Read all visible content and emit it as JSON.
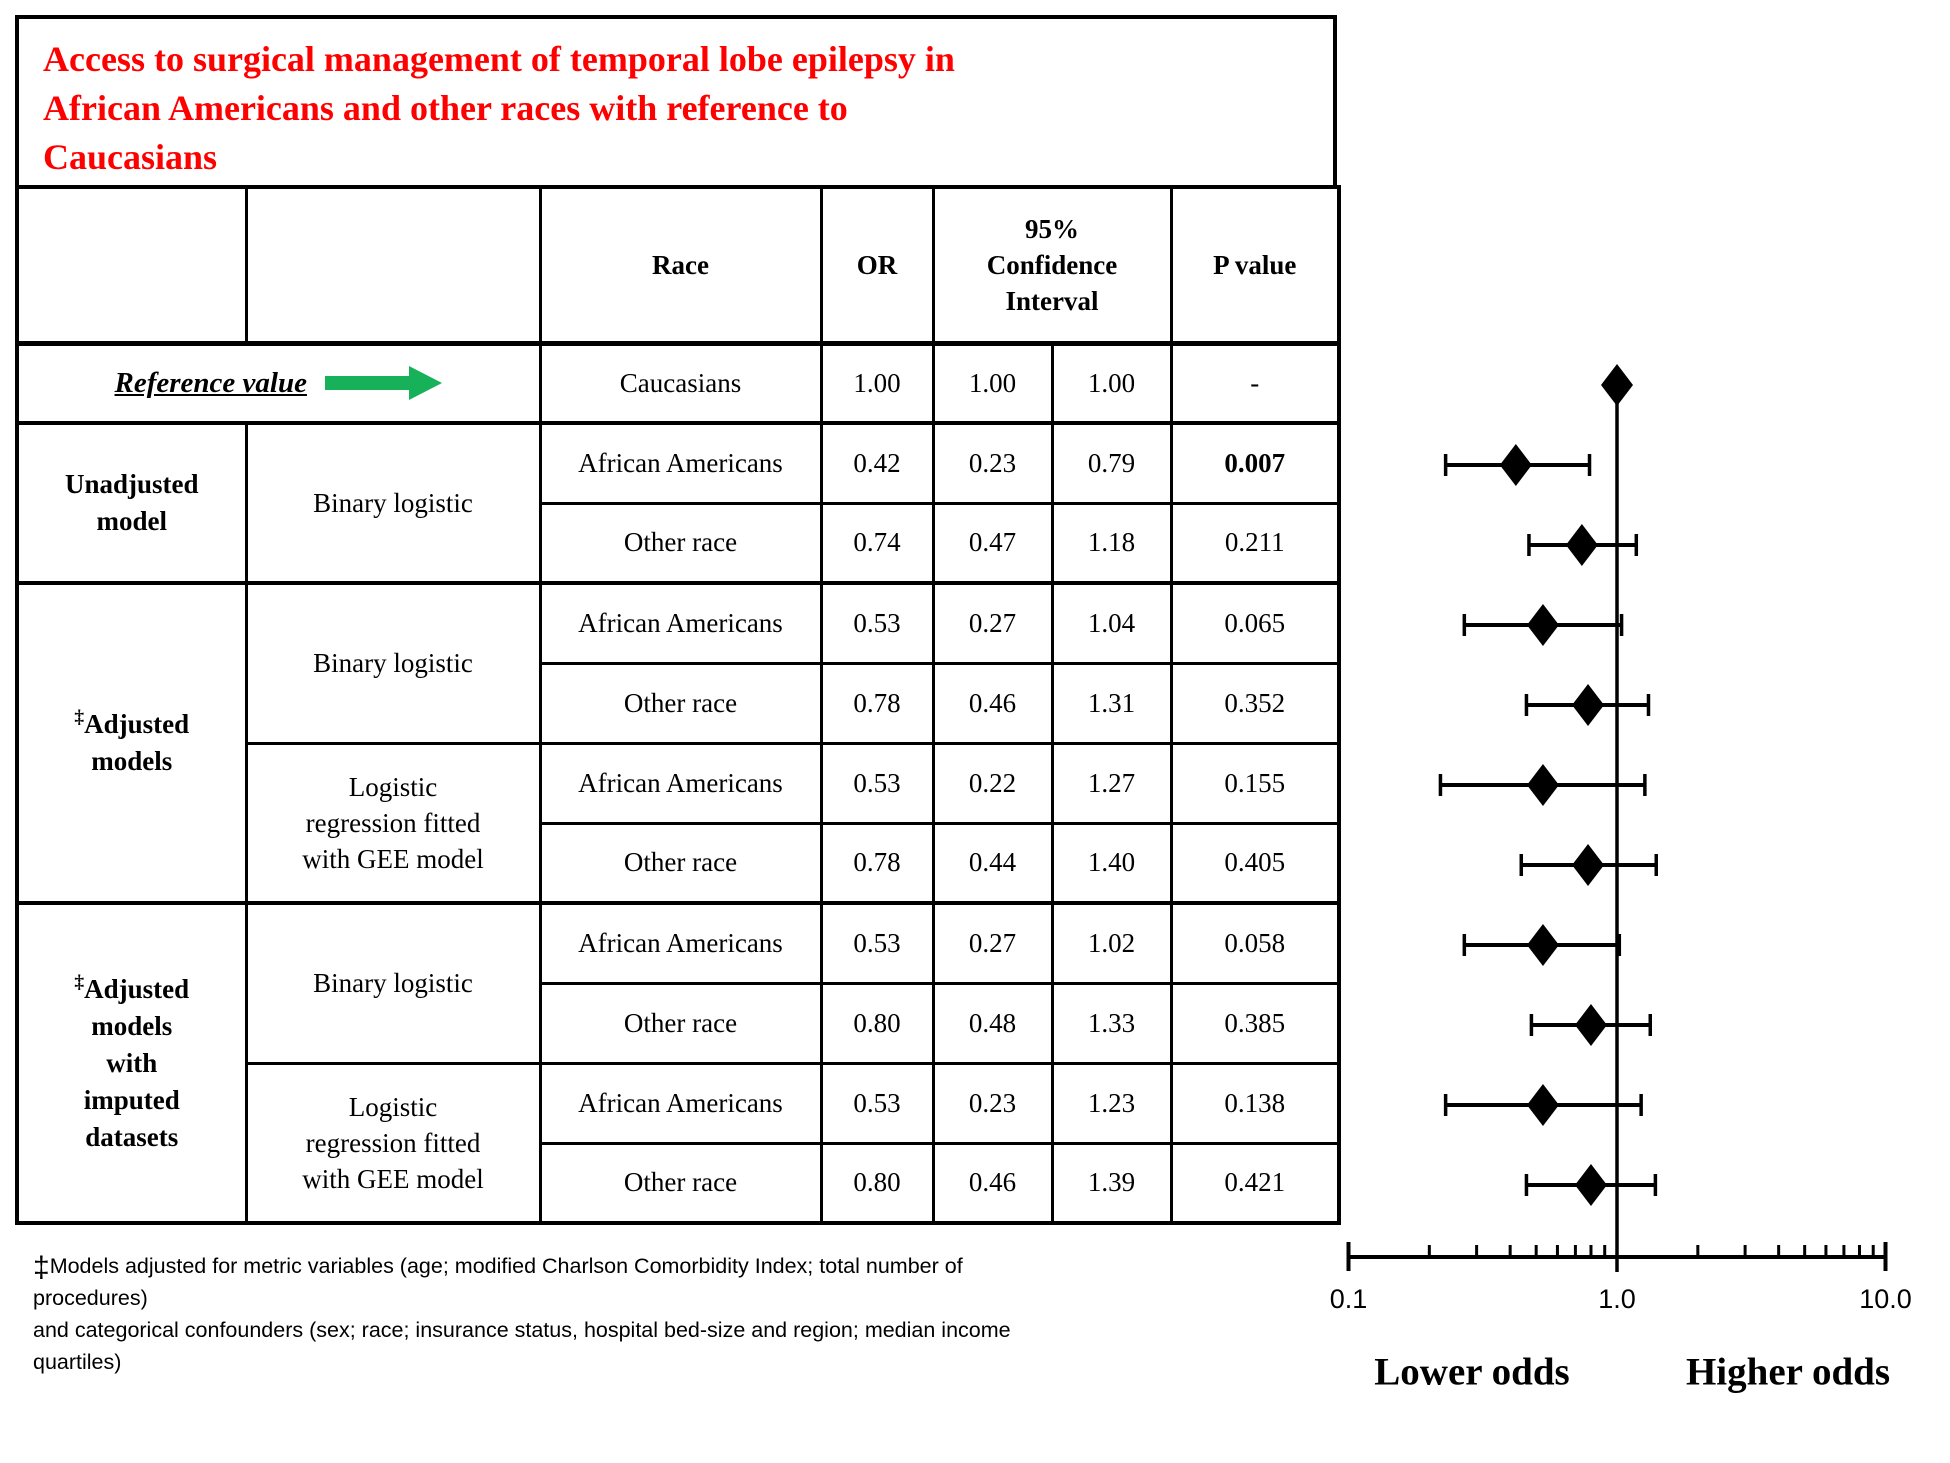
{
  "figure": {
    "title_lines": [
      "Access to surgical management of temporal lobe epilepsy in",
      "African Americans and other races  with reference to",
      "Caucasians"
    ],
    "title_color": "#FF0000",
    "arrow_color": "#17B159",
    "reference_label": "Reference value",
    "footnote": {
      "dagger": "‡",
      "lines": [
        "Models adjusted for metric variables (age; modified Charlson Comorbidity Index; total number of procedures)",
        "and categorical confounders (sex; race; insurance status, hospital bed-size and region; median income",
        "quartiles)"
      ]
    }
  },
  "table": {
    "headers": {
      "race": "Race",
      "or": "OR",
      "ci_lines": [
        "95%",
        "Confidence",
        "Interval"
      ],
      "p": "P value"
    },
    "rows": [
      {
        "reference": true,
        "race": "Caucasians",
        "or": "1.00",
        "lo": "1.00",
        "hi": "1.00",
        "p": "-"
      },
      {
        "group": {
          "lines": [
            "Unadjusted",
            "model"
          ],
          "span": 2
        },
        "method": {
          "lines": [
            "Binary logistic"
          ],
          "span": 2
        },
        "race": "African Americans",
        "or": "0.42",
        "lo": "0.23",
        "hi": "0.79",
        "p": "0.007",
        "p_bold": true
      },
      {
        "race": "Other race",
        "or": "0.74",
        "lo": "0.47",
        "hi": "1.18",
        "p": "0.211"
      },
      {
        "group": {
          "lines": [
            "‡Adjusted",
            "models"
          ],
          "span": 4
        },
        "method": {
          "lines": [
            "Binary logistic"
          ],
          "span": 2
        },
        "race": "African Americans",
        "or": "0.53",
        "lo": "0.27",
        "hi": "1.04",
        "p": "0.065"
      },
      {
        "race": "Other race",
        "or": "0.78",
        "lo": "0.46",
        "hi": "1.31",
        "p": "0.352"
      },
      {
        "method": {
          "lines": [
            "Logistic",
            "regression fitted",
            "with GEE model"
          ],
          "span": 2
        },
        "race": "African Americans",
        "or": "0.53",
        "lo": "0.22",
        "hi": "1.27",
        "p": "0.155"
      },
      {
        "race": "Other race",
        "or": "0.78",
        "lo": "0.44",
        "hi": "1.40",
        "p": "0.405"
      },
      {
        "group": {
          "lines": [
            "‡Adjusted",
            "models",
            "with",
            "imputed",
            "datasets"
          ],
          "span": 4
        },
        "method": {
          "lines": [
            "Binary logistic"
          ],
          "span": 2
        },
        "race": "African Americans",
        "or": "0.53",
        "lo": "0.27",
        "hi": "1.02",
        "p": "0.058"
      },
      {
        "race": "Other race",
        "or": "0.80",
        "lo": "0.48",
        "hi": "1.33",
        "p": "0.385"
      },
      {
        "method": {
          "lines": [
            "Logistic",
            "regression fitted",
            "with GEE model"
          ],
          "span": 2
        },
        "race": "African Americans",
        "or": "0.53",
        "lo": "0.23",
        "hi": "1.23",
        "p": "0.138"
      },
      {
        "race": "Other race",
        "or": "0.80",
        "lo": "0.46",
        "hi": "1.39",
        "p": "0.421"
      }
    ]
  },
  "chart_data": {
    "type": "scatter",
    "subtype": "forest-plot",
    "title": "Access to surgical management of temporal lobe epilepsy in African Americans and other races with reference to Caucasians",
    "x_scale": "log",
    "xlim": [
      0.1,
      10.0
    ],
    "x_ticks": [
      0.1,
      1.0,
      10.0
    ],
    "x_tick_labels": [
      "0.1",
      "1.0",
      "10.0"
    ],
    "minor_ticks": [
      0.2,
      0.3,
      0.4,
      0.5,
      0.6,
      0.7,
      0.8,
      0.9,
      2,
      3,
      4,
      5,
      6,
      7,
      8,
      9
    ],
    "reference_line_x": 1.0,
    "annotations": [
      "Lower odds",
      "Higher odds"
    ],
    "points": [
      {
        "label": "Caucasians (reference)",
        "or": 1.0,
        "ci_low": 1.0,
        "ci_high": 1.0
      },
      {
        "label": "Unadjusted, binary logistic, African Americans",
        "or": 0.42,
        "ci_low": 0.23,
        "ci_high": 0.79
      },
      {
        "label": "Unadjusted, binary logistic, Other race",
        "or": 0.74,
        "ci_low": 0.47,
        "ci_high": 1.18
      },
      {
        "label": "Adjusted, binary logistic, African Americans",
        "or": 0.53,
        "ci_low": 0.27,
        "ci_high": 1.04
      },
      {
        "label": "Adjusted, binary logistic, Other race",
        "or": 0.78,
        "ci_low": 0.46,
        "ci_high": 1.31
      },
      {
        "label": "Adjusted, GEE logistic, African Americans",
        "or": 0.53,
        "ci_low": 0.22,
        "ci_high": 1.27
      },
      {
        "label": "Adjusted, GEE logistic, Other race",
        "or": 0.78,
        "ci_low": 0.44,
        "ci_high": 1.4
      },
      {
        "label": "Adjusted imputed, binary logistic, African Americans",
        "or": 0.53,
        "ci_low": 0.27,
        "ci_high": 1.02
      },
      {
        "label": "Adjusted imputed, binary logistic, Other race",
        "or": 0.8,
        "ci_low": 0.48,
        "ci_high": 1.33
      },
      {
        "label": "Adjusted imputed, GEE logistic, African Americans",
        "or": 0.53,
        "ci_low": 0.23,
        "ci_high": 1.23
      },
      {
        "label": "Adjusted imputed, GEE logistic, Other race",
        "or": 0.8,
        "ci_low": 0.46,
        "ci_high": 1.39
      }
    ]
  }
}
